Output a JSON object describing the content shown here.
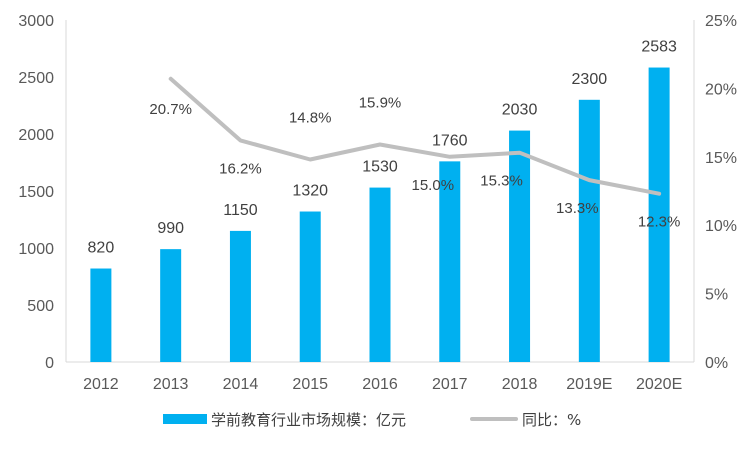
{
  "chart_data": {
    "type": "bar",
    "categories": [
      "2012",
      "2013",
      "2014",
      "2015",
      "2016",
      "2017",
      "2018",
      "2019E",
      "2020E"
    ],
    "series": [
      {
        "name": "学前教育行业市场规模：亿元",
        "type": "bar",
        "axis": "left",
        "color": "#00B0F0",
        "values": [
          820,
          990,
          1150,
          1320,
          1530,
          1760,
          2030,
          2300,
          2583
        ],
        "labels": [
          "820",
          "990",
          "1150",
          "1320",
          "1530",
          "1760",
          "2030",
          "2300",
          "2583"
        ]
      },
      {
        "name": "同比：%",
        "type": "line",
        "axis": "right",
        "color": "#BFBFBF",
        "values": [
          null,
          20.7,
          16.2,
          14.8,
          15.9,
          15.0,
          15.3,
          13.3,
          12.3
        ],
        "labels": [
          "",
          "20.7%",
          "16.2%",
          "14.8%",
          "15.9%",
          "15.0%",
          "15.3%",
          "13.3%",
          "12.3%"
        ]
      }
    ],
    "y_left": {
      "ylim": [
        0,
        3000
      ],
      "ticks": [
        "0",
        "500",
        "1000",
        "1500",
        "2000",
        "2500",
        "3000"
      ]
    },
    "y_right": {
      "ylim": [
        0,
        25
      ],
      "ticks": [
        "0%",
        "5%",
        "10%",
        "15%",
        "20%",
        "25%"
      ]
    },
    "grid": false,
    "legend_position": "bottom"
  }
}
